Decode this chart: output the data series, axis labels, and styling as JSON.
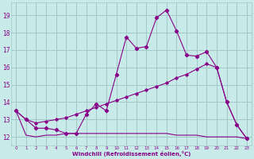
{
  "bg_color": "#c8eae8",
  "grid_color": "#a0c8c8",
  "line_color": "#880088",
  "x": [
    0,
    1,
    2,
    3,
    4,
    5,
    6,
    7,
    8,
    9,
    10,
    11,
    12,
    13,
    14,
    15,
    16,
    17,
    18,
    19,
    20,
    21,
    22,
    23
  ],
  "line1": [
    13.5,
    13.0,
    12.5,
    12.5,
    12.4,
    12.2,
    12.2,
    13.3,
    13.9,
    13.5,
    15.6,
    17.75,
    17.1,
    17.2,
    18.85,
    19.3,
    18.1,
    16.7,
    16.65,
    16.9,
    16.0,
    14.0,
    12.7,
    11.9
  ],
  "line2": [
    13.5,
    13.0,
    12.8,
    12.9,
    13.0,
    13.1,
    13.3,
    13.5,
    13.7,
    13.9,
    14.1,
    14.3,
    14.5,
    14.7,
    14.9,
    15.1,
    15.4,
    15.6,
    15.9,
    16.2,
    16.0,
    14.0,
    12.7,
    11.9
  ],
  "line3": [
    13.5,
    12.1,
    12.0,
    12.1,
    12.1,
    12.2,
    12.2,
    12.2,
    12.2,
    12.2,
    12.2,
    12.2,
    12.2,
    12.2,
    12.2,
    12.2,
    12.1,
    12.1,
    12.1,
    12.0,
    12.0,
    12.0,
    12.0,
    11.9
  ],
  "xlabel": "Windchill (Refroidissement éolien,°C)",
  "ylim": [
    11.5,
    19.75
  ],
  "xlim": [
    -0.5,
    23.5
  ],
  "yticks": [
    12,
    13,
    14,
    15,
    16,
    17,
    18,
    19
  ],
  "xticks": [
    0,
    1,
    2,
    3,
    4,
    5,
    6,
    7,
    8,
    9,
    10,
    11,
    12,
    13,
    14,
    15,
    16,
    17,
    18,
    19,
    20,
    21,
    22,
    23
  ]
}
